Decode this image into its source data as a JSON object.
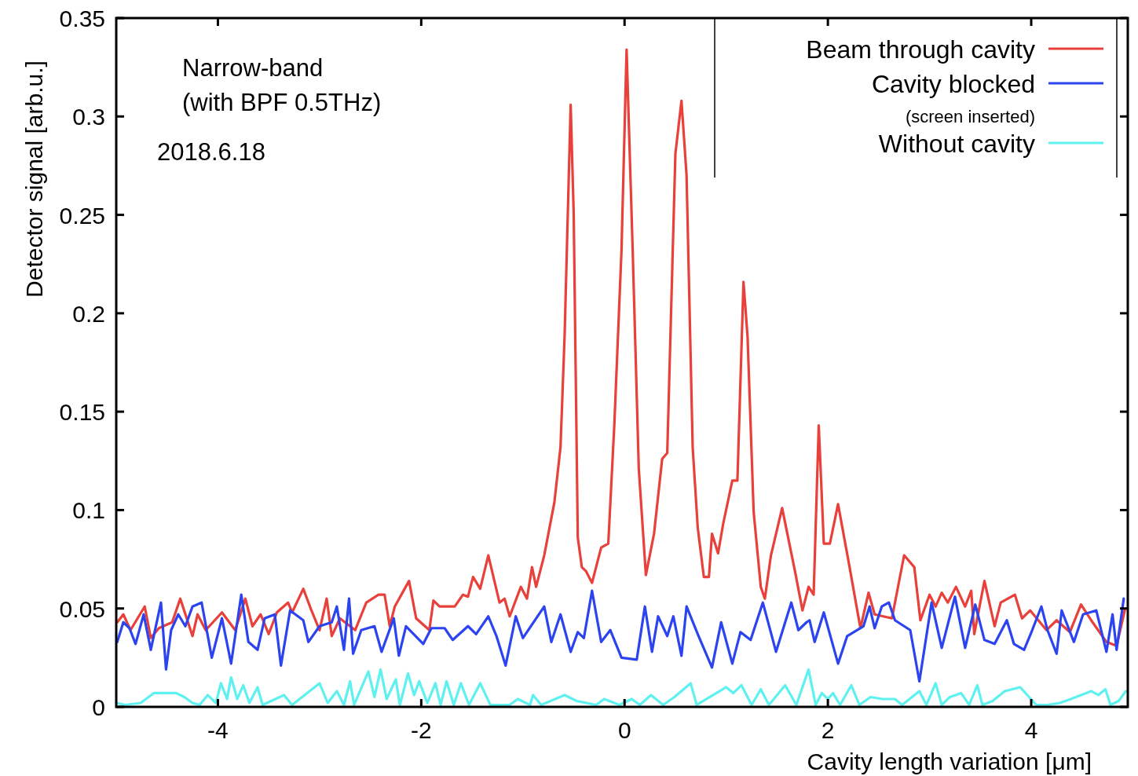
{
  "chart_data": {
    "type": "line",
    "xlabel": "Cavity length variation [μm]",
    "ylabel": "Detector signal [arb.u.]",
    "annotations": [
      "Narrow-band",
      "(with BPF 0.5THz)",
      "2018.6.18"
    ],
    "xlim": [
      -5,
      4.95
    ],
    "xticks": [
      -4,
      -2,
      0,
      2,
      4
    ],
    "ylim": [
      0,
      0.35
    ],
    "yticks": [
      0,
      0.05,
      0.1,
      0.15,
      0.2,
      0.25,
      0.3,
      0.35
    ],
    "legend": "top right",
    "grid": false,
    "marker": "none",
    "line_style": "solid",
    "series": [
      {
        "name": "Beam through cavity",
        "color": "#e8403a",
        "x": [
          -4.99,
          -4.93,
          -4.86,
          -4.72,
          -4.66,
          -4.58,
          -4.45,
          -4.37,
          -4.25,
          -4.2,
          -4.12,
          -3.96,
          -3.83,
          -3.73,
          -3.66,
          -3.58,
          -3.5,
          -3.42,
          -3.31,
          -3.27,
          -3.16,
          -3.08,
          -3,
          -2.93,
          -2.88,
          -2.8,
          -2.65,
          -2.54,
          -2.42,
          -2.36,
          -2.31,
          -2.26,
          -2.12,
          -2.05,
          -1.92,
          -1.88,
          -1.82,
          -1.67,
          -1.59,
          -1.54,
          -1.49,
          -1.42,
          -1.34,
          -1.23,
          -1.18,
          -1.13,
          -1.02,
          -0.96,
          -0.91,
          -0.87,
          -0.79,
          -0.69,
          -0.63,
          -0.59,
          -0.53,
          -0.5,
          -0.46,
          -0.42,
          -0.38,
          -0.32,
          -0.23,
          -0.16,
          -0.1,
          -0.03,
          0.02,
          0.08,
          0.14,
          0.21,
          0.29,
          0.37,
          0.42,
          0.5,
          0.56,
          0.61,
          0.67,
          0.72,
          0.78,
          0.83,
          0.86,
          0.92,
          0.97,
          1.06,
          1.11,
          1.17,
          1.21,
          1.27,
          1.34,
          1.38,
          1.44,
          1.55,
          1.68,
          1.75,
          1.81,
          1.86,
          1.91,
          1.96,
          2.02,
          2.1,
          2.21,
          2.32,
          2.4,
          2.46,
          2.63,
          2.75,
          2.85,
          2.91,
          3,
          3.06,
          3.12,
          3.18,
          3.26,
          3.35,
          3.41,
          3.44,
          3.54,
          3.64,
          3.7,
          3.84,
          3.91,
          3.99,
          4.15,
          4.25,
          4.38,
          4.49,
          4.59,
          4.74,
          4.84,
          4.92
        ],
        "values": [
          0.043,
          0.047,
          0.039,
          0.051,
          0.035,
          0.04,
          0.043,
          0.055,
          0.036,
          0.047,
          0.039,
          0.048,
          0.039,
          0.055,
          0.041,
          0.047,
          0.037,
          0.048,
          0.053,
          0.048,
          0.06,
          0.049,
          0.039,
          0.055,
          0.036,
          0.045,
          0.039,
          0.053,
          0.057,
          0.057,
          0.041,
          0.051,
          0.064,
          0.045,
          0.039,
          0.054,
          0.051,
          0.051,
          0.057,
          0.056,
          0.066,
          0.06,
          0.077,
          0.053,
          0.055,
          0.046,
          0.061,
          0.055,
          0.071,
          0.061,
          0.077,
          0.104,
          0.132,
          0.188,
          0.306,
          0.25,
          0.086,
          0.071,
          0.069,
          0.063,
          0.081,
          0.083,
          0.144,
          0.232,
          0.334,
          0.232,
          0.121,
          0.067,
          0.088,
          0.126,
          0.129,
          0.281,
          0.308,
          0.27,
          0.132,
          0.091,
          0.066,
          0.066,
          0.088,
          0.078,
          0.093,
          0.115,
          0.115,
          0.216,
          0.188,
          0.099,
          0.061,
          0.055,
          0.077,
          0.101,
          0.068,
          0.049,
          0.061,
          0.057,
          0.143,
          0.083,
          0.083,
          0.103,
          0.072,
          0.04,
          0.058,
          0.047,
          0.045,
          0.077,
          0.071,
          0.044,
          0.057,
          0.051,
          0.058,
          0.053,
          0.061,
          0.051,
          0.059,
          0.037,
          0.064,
          0.041,
          0.053,
          0.057,
          0.045,
          0.049,
          0.039,
          0.044,
          0.038,
          0.052,
          0.044,
          0.033,
          0.031,
          0.049
        ]
      },
      {
        "name": "Cavity blocked\n(screen inserted)",
        "color": "#2b44f0",
        "x": [
          -4.99,
          -4.93,
          -4.87,
          -4.81,
          -4.73,
          -4.66,
          -4.56,
          -4.51,
          -4.46,
          -4.39,
          -4.32,
          -4.25,
          -4.16,
          -4.06,
          -3.96,
          -3.87,
          -3.77,
          -3.7,
          -3.61,
          -3.54,
          -3.44,
          -3.38,
          -3.29,
          -3.16,
          -3.11,
          -3,
          -2.88,
          -2.83,
          -2.76,
          -2.71,
          -2.67,
          -2.59,
          -2.46,
          -2.39,
          -2.27,
          -2.22,
          -2.15,
          -1.98,
          -1.9,
          -1.77,
          -1.69,
          -1.54,
          -1.46,
          -1.34,
          -1.26,
          -1.17,
          -1.07,
          -1,
          -0.79,
          -0.72,
          -0.63,
          -0.53,
          -0.46,
          -0.4,
          -0.32,
          -0.23,
          -0.14,
          -0.03,
          0.12,
          0.2,
          0.27,
          0.33,
          0.42,
          0.48,
          0.56,
          0.61,
          0.72,
          0.86,
          0.95,
          1.06,
          1.14,
          1.24,
          1.36,
          1.49,
          1.64,
          1.71,
          1.79,
          1.82,
          1.87,
          1.96,
          2.1,
          2.19,
          2.35,
          2.41,
          2.46,
          2.53,
          2.6,
          2.66,
          2.81,
          2.9,
          3.02,
          3.12,
          3.25,
          3.35,
          3.45,
          3.54,
          3.64,
          3.76,
          3.83,
          3.93,
          4.01,
          4.1,
          4.16,
          4.25,
          4.3,
          4.42,
          4.51,
          4.64,
          4.74,
          4.8,
          4.84,
          4.91
        ],
        "values": [
          0.033,
          0.043,
          0.04,
          0.032,
          0.047,
          0.029,
          0.053,
          0.019,
          0.039,
          0.047,
          0.041,
          0.051,
          0.053,
          0.025,
          0.045,
          0.022,
          0.057,
          0.033,
          0.029,
          0.045,
          0.047,
          0.021,
          0.049,
          0.044,
          0.033,
          0.041,
          0.043,
          0.051,
          0.029,
          0.055,
          0.027,
          0.039,
          0.041,
          0.028,
          0.045,
          0.026,
          0.041,
          0.032,
          0.04,
          0.04,
          0.034,
          0.041,
          0.037,
          0.046,
          0.036,
          0.021,
          0.046,
          0.035,
          0.051,
          0.033,
          0.047,
          0.028,
          0.038,
          0.035,
          0.059,
          0.033,
          0.039,
          0.025,
          0.024,
          0.051,
          0.028,
          0.046,
          0.036,
          0.046,
          0.026,
          0.051,
          0.037,
          0.02,
          0.043,
          0.022,
          0.038,
          0.034,
          0.053,
          0.028,
          0.053,
          0.039,
          0.043,
          0.044,
          0.033,
          0.048,
          0.022,
          0.036,
          0.041,
          0.051,
          0.04,
          0.051,
          0.053,
          0.044,
          0.039,
          0.013,
          0.053,
          0.03,
          0.056,
          0.03,
          0.052,
          0.034,
          0.032,
          0.044,
          0.032,
          0.029,
          0.039,
          0.051,
          0.039,
          0.027,
          0.049,
          0.033,
          0.047,
          0.049,
          0.028,
          0.047,
          0.029,
          0.055
        ]
      },
      {
        "name": "Without cavity",
        "color": "#5ff0f0",
        "x": [
          -5,
          -4.91,
          -4.76,
          -4.63,
          -4.41,
          -4.33,
          -4.25,
          -4.18,
          -4.1,
          -4.02,
          -3.97,
          -3.91,
          -3.87,
          -3.81,
          -3.75,
          -3.69,
          -3.61,
          -3.56,
          -3.35,
          -3.27,
          -3,
          -2.92,
          -2.83,
          -2.76,
          -2.7,
          -2.66,
          -2.52,
          -2.46,
          -2.4,
          -2.34,
          -2.25,
          -2.21,
          -2.13,
          -2.07,
          -2.02,
          -1.94,
          -1.86,
          -1.81,
          -1.75,
          -1.68,
          -1.61,
          -1.53,
          -1.42,
          -1.32,
          -1.13,
          -1.05,
          -0.93,
          -0.9,
          -0.82,
          -0.59,
          -0.47,
          -0.28,
          -0.2,
          -0.05,
          0.07,
          0.15,
          0.26,
          0.38,
          0.49,
          0.65,
          0.71,
          1,
          1.07,
          1.15,
          1.25,
          1.34,
          1.42,
          1.58,
          1.69,
          1.81,
          1.88,
          1.94,
          2,
          2.05,
          2.12,
          2.23,
          2.31,
          2.42,
          2.54,
          2.66,
          2.73,
          2.9,
          2.97,
          3.06,
          3.12,
          3.2,
          3.31,
          3.39,
          3.47,
          3.52,
          3.62,
          3.74,
          3.89,
          3.98,
          4.05,
          4.16,
          4.28,
          4.39,
          4.49,
          4.59,
          4.66,
          4.73,
          4.78,
          4.86,
          4.93
        ],
        "values": [
          0.002,
          0.001,
          0.002,
          0.007,
          0.007,
          0.005,
          0.002,
          0.001,
          0.006,
          0.002,
          0.012,
          0.004,
          0.015,
          0.004,
          0.011,
          0.002,
          0.01,
          0.001,
          0.006,
          0.001,
          0.012,
          0.002,
          0.008,
          0.001,
          0.013,
          0.001,
          0.018,
          0.005,
          0.019,
          0.004,
          0.014,
          0.001,
          0.017,
          0.006,
          0.013,
          0.002,
          0.012,
          0.001,
          0.013,
          0.001,
          0.012,
          0.001,
          0.012,
          0.001,
          0.001,
          0.004,
          0.001,
          0.006,
          0.001,
          0.006,
          0.003,
          0.001,
          0.004,
          0.001,
          0.004,
          0.001,
          0.006,
          0.001,
          0.005,
          0.012,
          0.001,
          0.01,
          0.007,
          0.011,
          0.001,
          0.009,
          0.001,
          0.011,
          0.001,
          0.019,
          0.001,
          0.007,
          0.004,
          0.007,
          0.001,
          0.011,
          0.001,
          0.005,
          0.004,
          0.004,
          0.001,
          0.008,
          0.001,
          0.012,
          0.001,
          0.005,
          0.007,
          0.001,
          0.011,
          0.001,
          0.003,
          0.008,
          0.01,
          0.005,
          0.001,
          0.001,
          0.002,
          0.004,
          0.006,
          0.008,
          0.006,
          0.009,
          0.001,
          0.003,
          0.008
        ]
      }
    ]
  }
}
